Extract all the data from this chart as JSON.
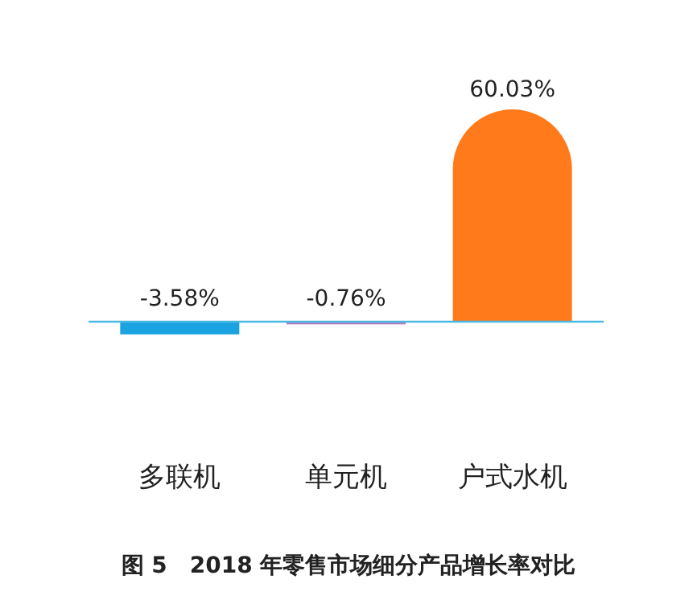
{
  "chart_data": {
    "type": "bar",
    "title": "图 5　2018 年零售市场细分产品增长率对比",
    "categories": [
      "多联机",
      "单元机",
      "户式水机"
    ],
    "values": [
      -3.58,
      -0.76,
      60.03
    ],
    "colors": [
      "#1aa3e0",
      "#b07cc6",
      "#ff7a1a"
    ],
    "data_labels": true,
    "ref_lines": [
      {
        "axis": "y",
        "value": 0,
        "color": "#4bb8e0"
      }
    ],
    "value_labels": [
      "-3.58%",
      "-0.76%",
      "60.03%"
    ]
  }
}
